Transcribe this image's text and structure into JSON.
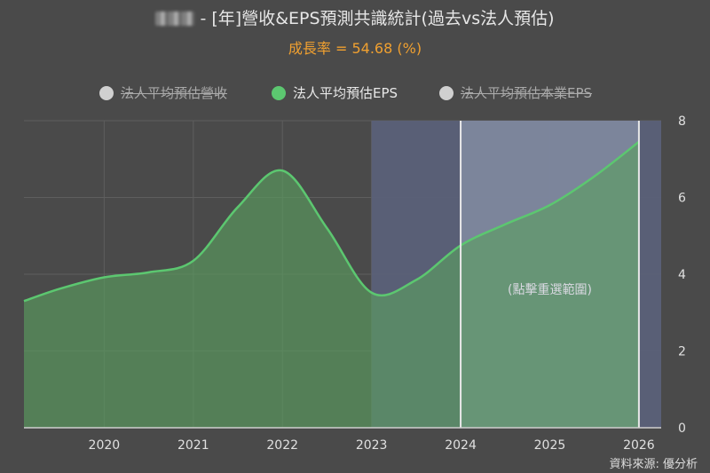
{
  "header": {
    "title": "- [年]營收&EPS預測共識統計(過去vs法人預估)",
    "subtitle": "成長率 = 54.68 (%)"
  },
  "legend": [
    {
      "label": "法人平均預估營收",
      "active": false,
      "color": "#d0d0d0"
    },
    {
      "label": "法人平均預估EPS",
      "active": true,
      "color": "#5cc770"
    },
    {
      "label": "法人平均預估本業EPS",
      "active": false,
      "color": "#d0d0d0"
    }
  ],
  "annotation": "(點擊重選範圍)",
  "source": "資料來源: 優分析",
  "colors": {
    "background": "#4a4a4a",
    "line": "#5cc770",
    "area": "#5aa05f",
    "forecast_band": "#5a6078",
    "selection_band": "#808aa0"
  },
  "chart_data": {
    "type": "area",
    "x": [
      2019.1,
      2019.5,
      2020,
      2020.5,
      2021,
      2021.5,
      2022,
      2022.5,
      2023,
      2023.5,
      2024,
      2024.5,
      2025,
      2025.5,
      2026
    ],
    "series": [
      {
        "name": "法人平均預估EPS",
        "values": [
          3.3,
          3.62,
          3.92,
          4.05,
          4.35,
          5.75,
          6.7,
          5.2,
          3.52,
          3.85,
          4.75,
          5.3,
          5.8,
          6.55,
          7.45
        ]
      }
    ],
    "xticks": [
      "2020",
      "2021",
      "2022",
      "2023",
      "2024",
      "2025",
      "2026"
    ],
    "yticks": [
      "0",
      "2",
      "4",
      "6",
      "8"
    ],
    "xlim": [
      2019.1,
      2026.25
    ],
    "ylim": [
      0,
      8
    ],
    "forecast_region": [
      2023,
      2026.25
    ],
    "selected_region": [
      2024,
      2026
    ],
    "grid": true
  }
}
